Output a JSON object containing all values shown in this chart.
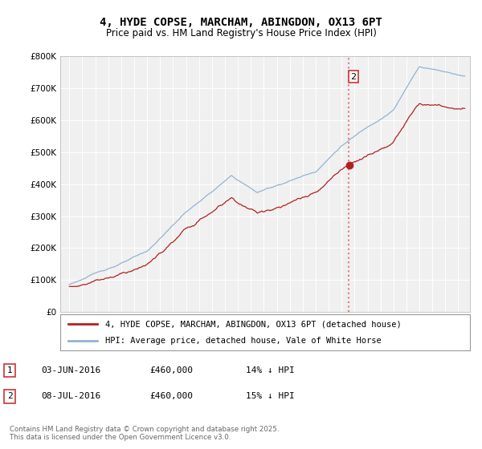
{
  "title": "4, HYDE COPSE, MARCHAM, ABINGDON, OX13 6PT",
  "subtitle": "Price paid vs. HM Land Registry's House Price Index (HPI)",
  "legend_line1": "4, HYDE COPSE, MARCHAM, ABINGDON, OX13 6PT (detached house)",
  "legend_line2": "HPI: Average price, detached house, Vale of White Horse",
  "table_rows": [
    {
      "num": "1",
      "date": "03-JUN-2016",
      "price": "£460,000",
      "hpi": "14% ↓ HPI"
    },
    {
      "num": "2",
      "date": "08-JUL-2016",
      "price": "£460,000",
      "hpi": "15% ↓ HPI"
    }
  ],
  "footer": "Contains HM Land Registry data © Crown copyright and database right 2025.\nThis data is licensed under the Open Government Licence v3.0.",
  "hpi_color": "#92b4d4",
  "price_color": "#b22020",
  "vline_color": "#e07070",
  "vline_x": 2016.55,
  "sale_x": 2016.55,
  "sale_y": 460000,
  "ylim": [
    0,
    800000
  ],
  "yticks": [
    0,
    100000,
    200000,
    300000,
    400000,
    500000,
    600000,
    700000,
    800000
  ],
  "xlim_left": 1994.3,
  "xlim_right": 2025.9,
  "background_color": "#ffffff",
  "plot_bg_color": "#f0f0f0",
  "grid_color": "#ffffff",
  "title_fontsize": 10,
  "subtitle_fontsize": 8.5,
  "tick_fontsize": 7.5
}
